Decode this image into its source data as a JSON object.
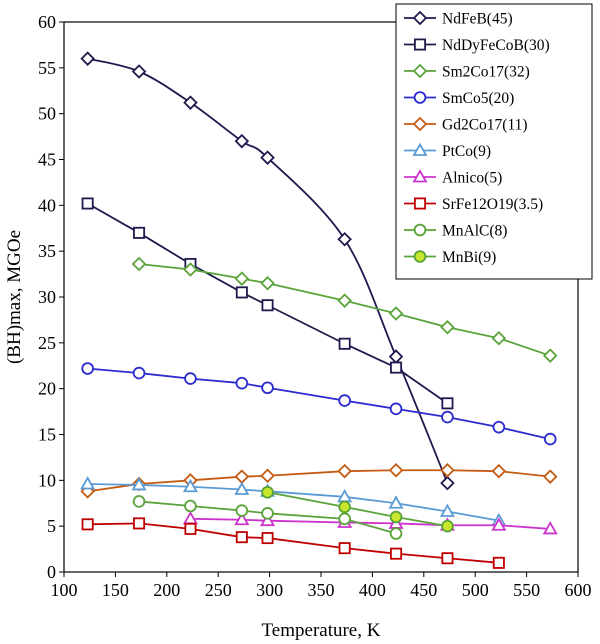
{
  "chart_data": {
    "type": "line",
    "xlabel": "Temperature, K",
    "ylabel": "(BH)max, MGOe",
    "xlim": [
      100,
      600
    ],
    "ylim": [
      0,
      60
    ],
    "xticks": [
      100,
      150,
      200,
      250,
      300,
      350,
      400,
      450,
      500,
      550,
      600
    ],
    "yticks": [
      0,
      5,
      10,
      15,
      20,
      25,
      30,
      35,
      40,
      45,
      50,
      55,
      60
    ],
    "grid": false,
    "legend_position": "top-right",
    "series": [
      {
        "name": "NdFeB(45)",
        "color": "#1f1a4d",
        "marker": "diamond",
        "fill": "#ffffff",
        "smooth": true,
        "x": [
          123,
          173,
          223,
          273,
          298,
          373,
          423,
          473
        ],
        "y": [
          56.0,
          54.6,
          51.2,
          47.0,
          45.2,
          36.3,
          23.5,
          9.7
        ]
      },
      {
        "name": "NdDyFeCoB(30)",
        "color": "#1f1a4d",
        "marker": "square",
        "fill": "#ffffff",
        "smooth": false,
        "x": [
          123,
          173,
          223,
          273,
          298,
          373,
          423,
          473
        ],
        "y": [
          40.2,
          37.0,
          33.6,
          30.5,
          29.1,
          24.9,
          22.3,
          18.4
        ]
      },
      {
        "name": "Sm2Co17(32)",
        "color": "#5aa33a",
        "marker": "diamond",
        "fill": "#ffffff",
        "smooth": false,
        "x": [
          173,
          223,
          273,
          298,
          373,
          423,
          473,
          523,
          573
        ],
        "y": [
          33.6,
          33.0,
          32.0,
          31.5,
          29.6,
          28.2,
          26.7,
          25.5,
          23.6
        ]
      },
      {
        "name": "SmCo5(20)",
        "color": "#2b2bcf",
        "marker": "circle",
        "fill": "#ffffff",
        "smooth": false,
        "x": [
          123,
          173,
          223,
          273,
          298,
          373,
          423,
          473,
          523,
          573
        ],
        "y": [
          22.2,
          21.7,
          21.1,
          20.6,
          20.1,
          18.7,
          17.8,
          16.9,
          15.8,
          14.5
        ]
      },
      {
        "name": "Gd2Co17(11)",
        "color": "#c55a11",
        "marker": "diamond",
        "fill": "#ffffff",
        "smooth": false,
        "x": [
          123,
          173,
          223,
          273,
          298,
          373,
          423,
          473,
          523,
          573
        ],
        "y": [
          8.8,
          9.6,
          10.0,
          10.4,
          10.5,
          11.0,
          11.1,
          11.1,
          11.0,
          10.4
        ]
      },
      {
        "name": "PtCo(9)",
        "color": "#5b9bd5",
        "marker": "triangle",
        "fill": "#ffffff",
        "smooth": false,
        "x": [
          123,
          173,
          223,
          273,
          298,
          373,
          423,
          473,
          523
        ],
        "y": [
          9.6,
          9.5,
          9.3,
          9.0,
          8.8,
          8.2,
          7.5,
          6.6,
          5.6
        ]
      },
      {
        "name": "Alnico(5)",
        "color": "#cc33cc",
        "marker": "triangle",
        "fill": "#ffffff",
        "smooth": false,
        "x": [
          223,
          273,
          298,
          373,
          423,
          473,
          523,
          573
        ],
        "y": [
          5.8,
          5.7,
          5.6,
          5.4,
          5.3,
          5.1,
          5.1,
          4.7
        ]
      },
      {
        "name": "SrFe12O19(3.5)",
        "color": "#c00000",
        "marker": "square",
        "fill": "#ffffff",
        "smooth": false,
        "x": [
          123,
          173,
          223,
          273,
          298,
          373,
          423,
          473,
          523
        ],
        "y": [
          5.2,
          5.3,
          4.7,
          3.8,
          3.7,
          2.6,
          2.0,
          1.5,
          1.0
        ]
      },
      {
        "name": "MnAlC(8)",
        "color": "#5aa33a",
        "marker": "circle",
        "fill": "#ffffff",
        "smooth": false,
        "x": [
          173,
          223,
          273,
          298,
          373,
          423
        ],
        "y": [
          7.7,
          7.2,
          6.7,
          6.4,
          5.8,
          4.2
        ]
      },
      {
        "name": "MnBi(9)",
        "color": "#5aa33a",
        "marker": "circle",
        "fill": "#c8e62e",
        "smooth": false,
        "x": [
          298,
          373,
          423,
          473
        ],
        "y": [
          8.7,
          7.1,
          6.0,
          5.0
        ]
      }
    ]
  }
}
